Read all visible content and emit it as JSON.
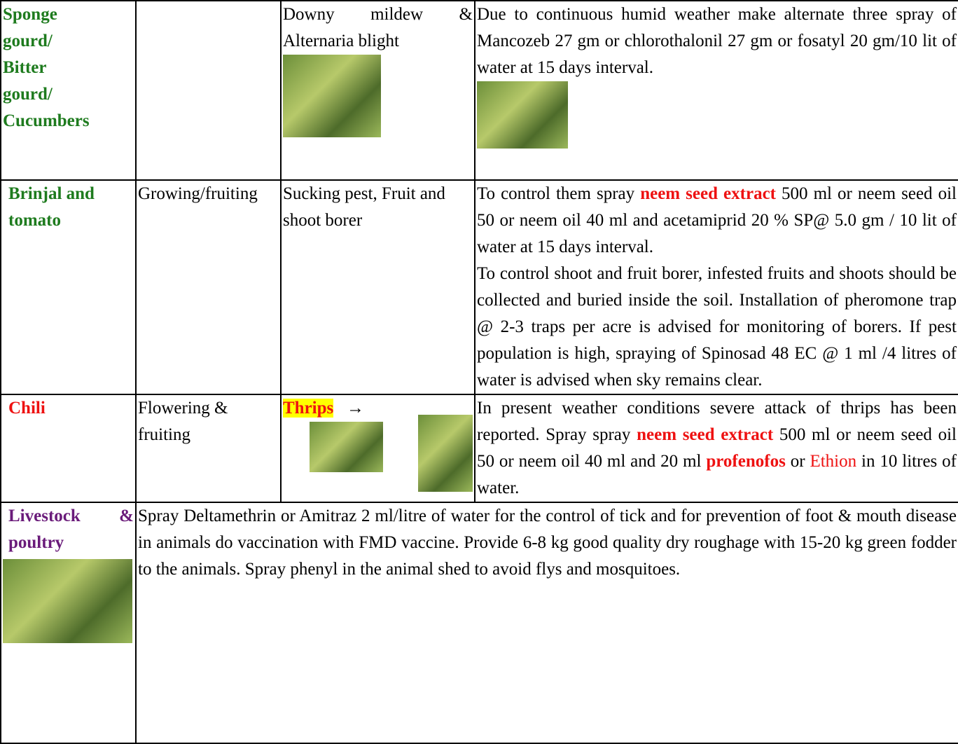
{
  "table": {
    "rows": [
      {
        "crop": [
          "Sponge",
          "gourd/",
          "Bitter",
          "gourd/",
          "Cucumbers"
        ],
        "problem": "Downy mildew & Alternaria blight",
        "advice": "Due to continuous humid weather make alternate three spray of Mancozeb 27 gm or chlorothalonil 27 gm or fosatyl 20 gm/10 lit of water at 15 days interval."
      },
      {
        "crop": "Brinjal and tomato",
        "stage": "Growing/fruiting",
        "problem": "Sucking pest, Fruit and shoot borer",
        "advice": [
          [
            "To control them spray ",
            "neem seed extract",
            " 500 ml or neem seed oil 50 or neem oil 40 ml and acetamiprid 20 % SP@ 5.0 gm / 10 lit of water at 15 days interval."
          ],
          [
            "To control shoot and fruit borer, infested fruits and shoots should be collected and buried inside the soil. Installation of pheromone trap @ 2-3 traps per acre is advised for monitoring of borers. If pest population is high, spraying of Spinosad 48 EC @ 1 ml /4 litres of water is advised when sky remains clear."
          ]
        ]
      },
      {
        "crop": "Chili",
        "stage": "Flowering & fruiting",
        "problem": "Thrips",
        "arrow": "→",
        "advice": [
          "In present weather conditions severe attack of thrips has been reported. Spray spray ",
          "neem seed extract",
          " 500 ml or neem seed oil 50 or neem oil 40 ml  and 20 ml ",
          "profenofos",
          " or ",
          "Ethion",
          " in 10 litres of water."
        ]
      },
      {
        "crop": "Livestock & poultry",
        "advice": "Spray Deltamethrin or Amitraz 2 ml/litre of water for the control of tick and for prevention of foot & mouth disease in animals do vaccination with  FMD vaccine. Provide 6-8 kg good quality dry roughage with 15-20 kg green fodder to the animals. Spray phenyl in the animal shed to avoid flys and mosquitoes."
      }
    ]
  }
}
